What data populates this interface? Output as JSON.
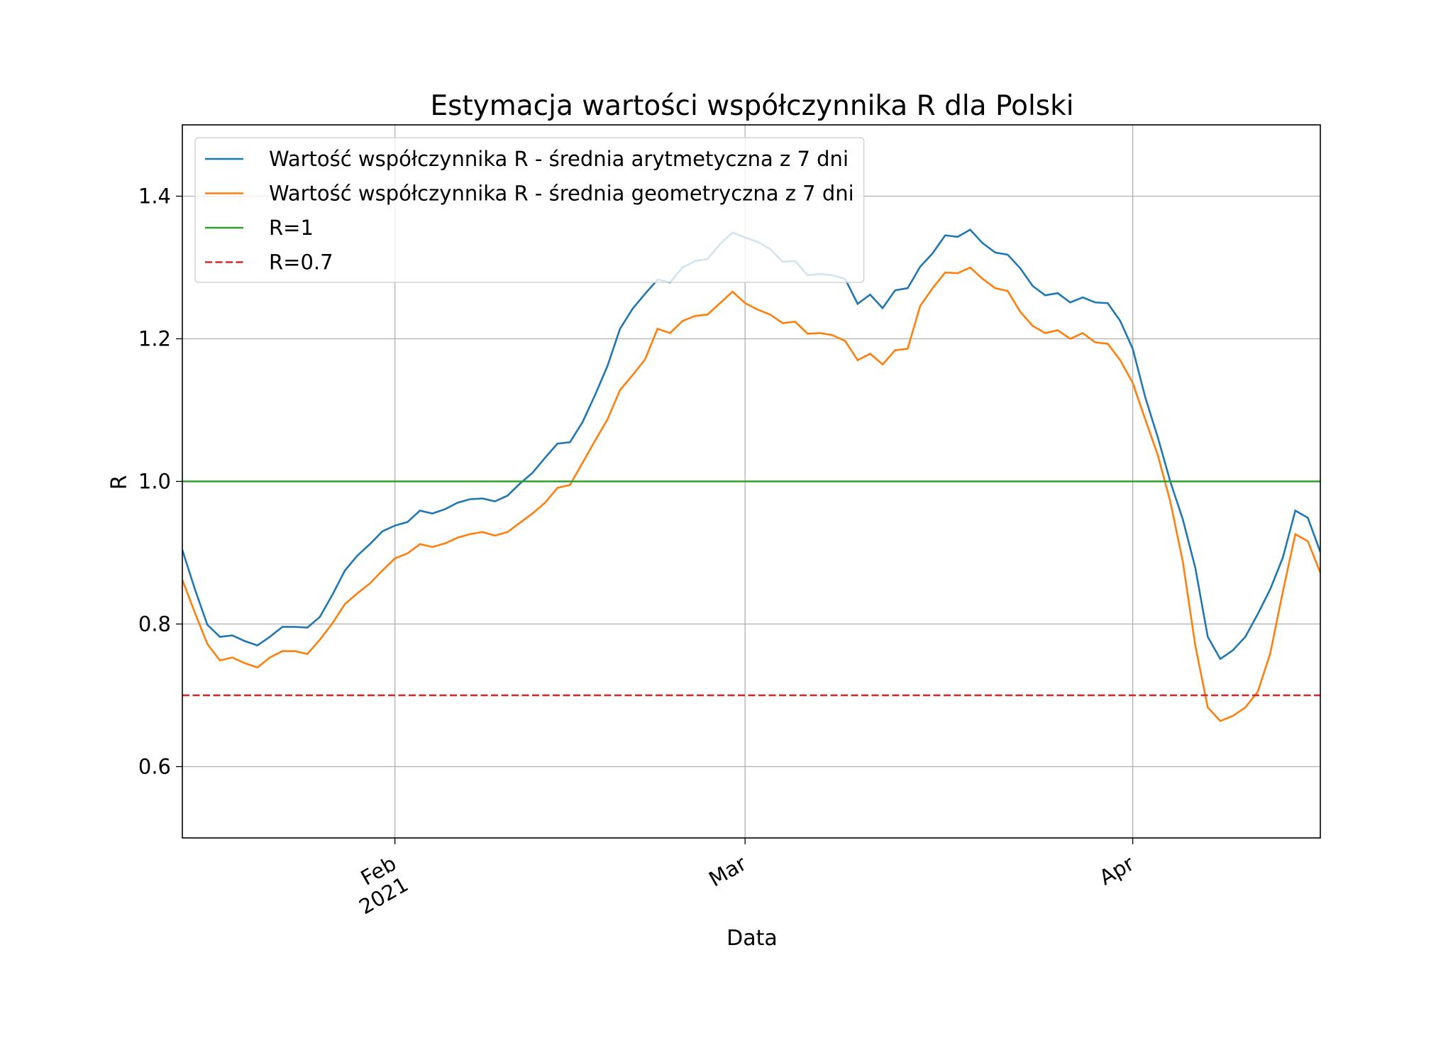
{
  "chart_data": {
    "type": "line",
    "title": "Estymacja wartości współczynnika R dla Polski",
    "xlabel": "Data",
    "ylabel": "R",
    "x": [
      "2021-01-15",
      "2021-01-16",
      "2021-01-17",
      "2021-01-18",
      "2021-01-19",
      "2021-01-20",
      "2021-01-21",
      "2021-01-22",
      "2021-01-23",
      "2021-01-24",
      "2021-01-25",
      "2021-01-26",
      "2021-01-27",
      "2021-01-28",
      "2021-01-29",
      "2021-01-30",
      "2021-01-31",
      "2021-02-01",
      "2021-02-02",
      "2021-02-03",
      "2021-02-04",
      "2021-02-05",
      "2021-02-06",
      "2021-02-07",
      "2021-02-08",
      "2021-02-09",
      "2021-02-10",
      "2021-02-11",
      "2021-02-12",
      "2021-02-13",
      "2021-02-14",
      "2021-02-15",
      "2021-02-16",
      "2021-02-17",
      "2021-02-18",
      "2021-02-19",
      "2021-02-20",
      "2021-02-21",
      "2021-02-22",
      "2021-02-23",
      "2021-02-24",
      "2021-02-25",
      "2021-02-26",
      "2021-02-27",
      "2021-02-28",
      "2021-03-01",
      "2021-03-02",
      "2021-03-03",
      "2021-03-04",
      "2021-03-05",
      "2021-03-06",
      "2021-03-07",
      "2021-03-08",
      "2021-03-09",
      "2021-03-10",
      "2021-03-11",
      "2021-03-12",
      "2021-03-13",
      "2021-03-14",
      "2021-03-15",
      "2021-03-16",
      "2021-03-17",
      "2021-03-18",
      "2021-03-19",
      "2021-03-20",
      "2021-03-21",
      "2021-03-22",
      "2021-03-23",
      "2021-03-24",
      "2021-03-25",
      "2021-03-26",
      "2021-03-27",
      "2021-03-28",
      "2021-03-29",
      "2021-03-30",
      "2021-03-31",
      "2021-04-01",
      "2021-04-02",
      "2021-04-03",
      "2021-04-04",
      "2021-04-05",
      "2021-04-06",
      "2021-04-07",
      "2021-04-08",
      "2021-04-09",
      "2021-04-10",
      "2021-04-11",
      "2021-04-12",
      "2021-04-13",
      "2021-04-14",
      "2021-04-15",
      "2021-04-16"
    ],
    "series": [
      {
        "name": "Wartość współczynnika R - średnia arytmetyczna z 7 dni",
        "color": "#1f77b4",
        "values": [
          0.904,
          0.849,
          0.799,
          0.782,
          0.784,
          0.776,
          0.77,
          0.782,
          0.796,
          0.796,
          0.795,
          0.81,
          0.841,
          0.875,
          0.896,
          0.912,
          0.93,
          0.938,
          0.943,
          0.959,
          0.955,
          0.961,
          0.97,
          0.975,
          0.976,
          0.972,
          0.98,
          0.997,
          1.012,
          1.033,
          1.053,
          1.055,
          1.083,
          1.121,
          1.162,
          1.214,
          1.242,
          1.263,
          1.283,
          1.279,
          1.3,
          1.309,
          1.312,
          1.333,
          1.349,
          1.342,
          1.336,
          1.326,
          1.308,
          1.309,
          1.289,
          1.291,
          1.289,
          1.284,
          1.249,
          1.262,
          1.243,
          1.268,
          1.271,
          1.301,
          1.32,
          1.345,
          1.343,
          1.353,
          1.334,
          1.321,
          1.318,
          1.299,
          1.274,
          1.261,
          1.264,
          1.251,
          1.258,
          1.251,
          1.25,
          1.225,
          1.186,
          1.118,
          1.062,
          1.0,
          0.947,
          0.879,
          0.782,
          0.751,
          0.763,
          0.782,
          0.814,
          0.849,
          0.893,
          0.959,
          0.949,
          0.901
        ]
      },
      {
        "name": "Wartość współczynnika R - średnia geometryczna z 7 dni",
        "color": "#ff7f0e",
        "values": [
          0.862,
          0.816,
          0.772,
          0.749,
          0.753,
          0.745,
          0.739,
          0.753,
          0.762,
          0.762,
          0.758,
          0.778,
          0.801,
          0.828,
          0.843,
          0.857,
          0.875,
          0.892,
          0.899,
          0.912,
          0.908,
          0.913,
          0.921,
          0.926,
          0.929,
          0.924,
          0.929,
          0.942,
          0.955,
          0.97,
          0.991,
          0.995,
          1.026,
          1.057,
          1.087,
          1.128,
          1.149,
          1.171,
          1.214,
          1.208,
          1.225,
          1.232,
          1.234,
          1.25,
          1.266,
          1.25,
          1.241,
          1.234,
          1.222,
          1.224,
          1.207,
          1.208,
          1.205,
          1.197,
          1.17,
          1.179,
          1.164,
          1.184,
          1.186,
          1.246,
          1.271,
          1.293,
          1.292,
          1.3,
          1.284,
          1.271,
          1.267,
          1.238,
          1.218,
          1.208,
          1.212,
          1.2,
          1.208,
          1.195,
          1.193,
          1.17,
          1.138,
          1.087,
          1.037,
          0.972,
          0.888,
          0.77,
          0.683,
          0.664,
          0.671,
          0.683,
          0.705,
          0.759,
          0.845,
          0.926,
          0.916,
          0.872
        ]
      }
    ],
    "hlines": [
      {
        "name": "R=1",
        "color": "#2ca02c",
        "value": 1.0,
        "dashed": false
      },
      {
        "name": "R=0.7",
        "color": "#d62728",
        "value": 0.7,
        "dashed": true
      }
    ],
    "xlim": [
      "2021-01-15",
      "2021-04-16"
    ],
    "xticks": [
      {
        "value": "2021-02-01",
        "label": "Feb\n2021"
      },
      {
        "value": "2021-03-01",
        "label": "Mar"
      },
      {
        "value": "2021-04-01",
        "label": "Apr"
      }
    ],
    "ylim": [
      0.5,
      1.5
    ],
    "yticks": [
      {
        "value": 0.6,
        "label": "0.6"
      },
      {
        "value": 0.8,
        "label": "0.8"
      },
      {
        "value": 1.0,
        "label": "1.0"
      },
      {
        "value": 1.2,
        "label": "1.2"
      },
      {
        "value": 1.4,
        "label": "1.4"
      }
    ],
    "grid": true,
    "legend": "upper left"
  }
}
